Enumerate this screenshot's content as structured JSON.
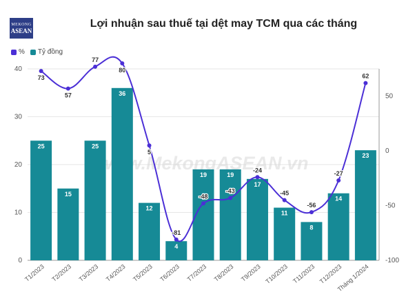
{
  "logo": {
    "line1": "MEKONG",
    "line2": "ASEAN"
  },
  "title": "Lợi nhuận sau thuế tại dệt may TCM qua các tháng",
  "watermark": "www.MekongASEAN.vn",
  "legend": [
    {
      "label": "%",
      "color": "#4b2fd6"
    },
    {
      "label": "Tỷ đồng",
      "color": "#168a96"
    }
  ],
  "chart_data": {
    "type": "bar+line",
    "categories": [
      "T1/2023",
      "T2/2023",
      "T3/2023",
      "T4/2023",
      "T5/2023",
      "T6/2023",
      "T7/2023",
      "T8/2023",
      "T9/2023",
      "T10/2023",
      "T11/2023",
      "T12/2023",
      "Tháng 1/2024"
    ],
    "series": [
      {
        "name": "Tỷ đồng",
        "type": "bar",
        "axis": "left",
        "color": "#168a96",
        "values": [
          25,
          15,
          25,
          36,
          12,
          4,
          19,
          19,
          17,
          11,
          8,
          14,
          23
        ]
      },
      {
        "name": "%",
        "type": "line",
        "axis": "right",
        "color": "#4b2fd6",
        "values": [
          73,
          57,
          77,
          80,
          5,
          -81,
          -48,
          -43,
          -24,
          -45,
          -56,
          -27,
          62
        ]
      }
    ],
    "left_axis": {
      "min": 0,
      "max": 40,
      "ticks": [
        0,
        10,
        20,
        30,
        40
      ]
    },
    "right_axis": {
      "min": -100,
      "max": 75,
      "ticks": [
        -100,
        -50,
        0,
        50
      ]
    },
    "legend_position": "top-left"
  }
}
